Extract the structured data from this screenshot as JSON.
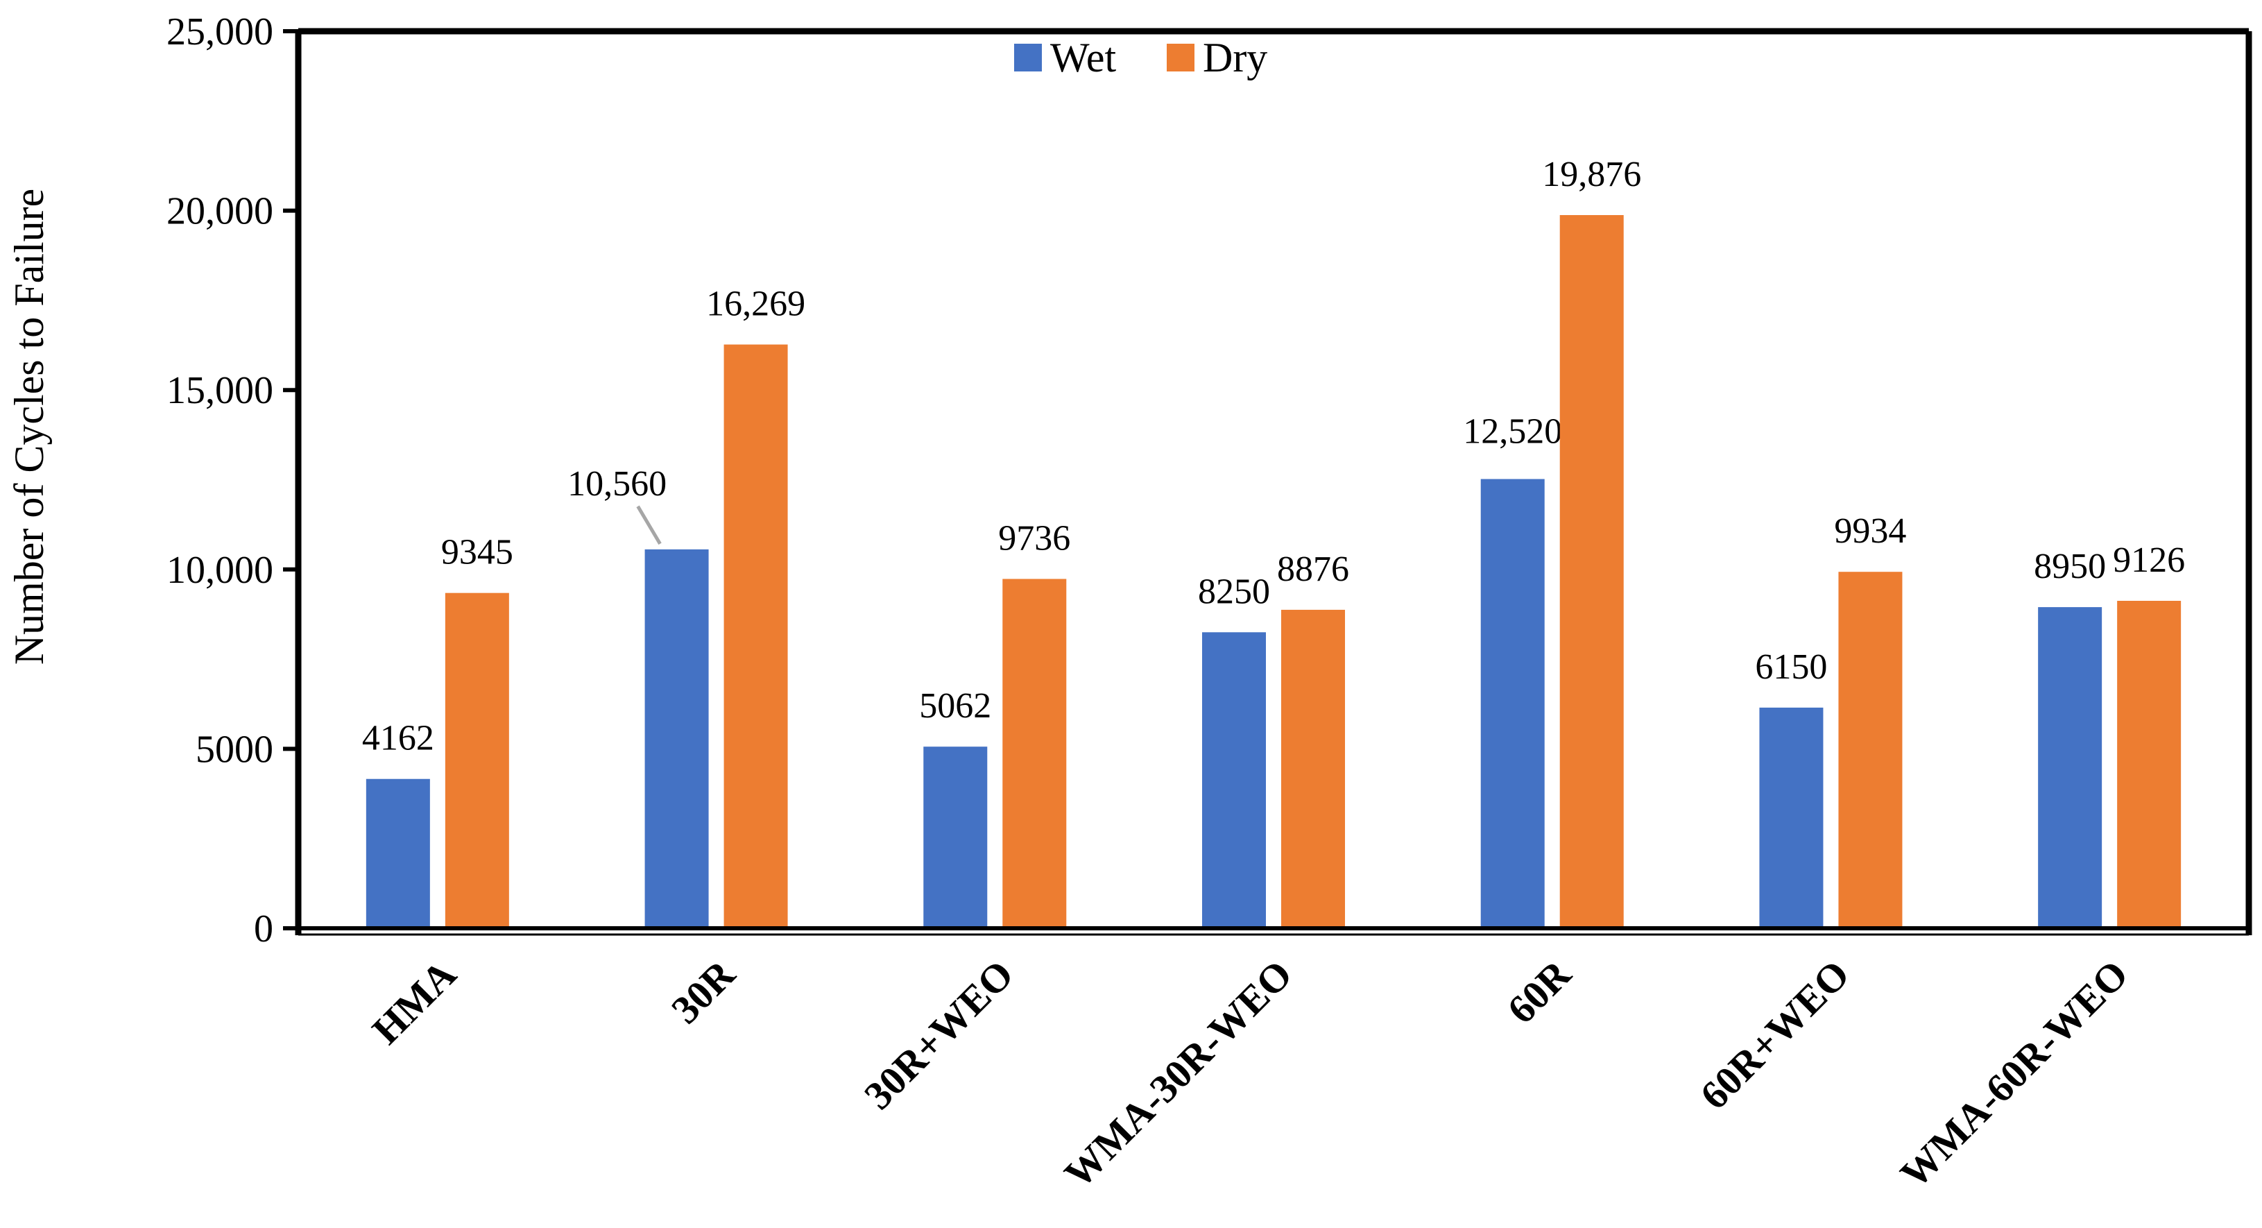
{
  "chart_data": {
    "type": "bar",
    "title": "",
    "xlabel": "",
    "ylabel": "Number of Cycles to Failure",
    "ylim": [
      0,
      25000
    ],
    "yticks": [
      {
        "value": 0,
        "label": "0"
      },
      {
        "value": 5000,
        "label": "5000"
      },
      {
        "value": 10000,
        "label": "10,000"
      },
      {
        "value": 15000,
        "label": "15,000"
      },
      {
        "value": 20000,
        "label": "20,000"
      },
      {
        "value": 25000,
        "label": "25,000"
      }
    ],
    "grid": false,
    "legend_position": "top-center",
    "categories": [
      "HMA",
      "30R",
      "30R+WEO",
      "WMA-30R-WEO",
      "60R",
      "60R+WEO",
      "WMA-60R-WEO"
    ],
    "series": [
      {
        "name": "Wet",
        "color": "#4472C4",
        "values": [
          4162,
          10560,
          5062,
          8250,
          12520,
          6150,
          8950
        ],
        "labels": [
          "4162",
          "10,560",
          "5062",
          "8250",
          "12,520",
          "6150",
          "8950"
        ]
      },
      {
        "name": "Dry",
        "color": "#ED7D31",
        "values": [
          9345,
          16269,
          9736,
          8876,
          19876,
          9934,
          9126
        ],
        "labels": [
          "9345",
          "16,269",
          "9736",
          "8876",
          "19,876",
          "9934",
          "9126"
        ]
      }
    ]
  }
}
